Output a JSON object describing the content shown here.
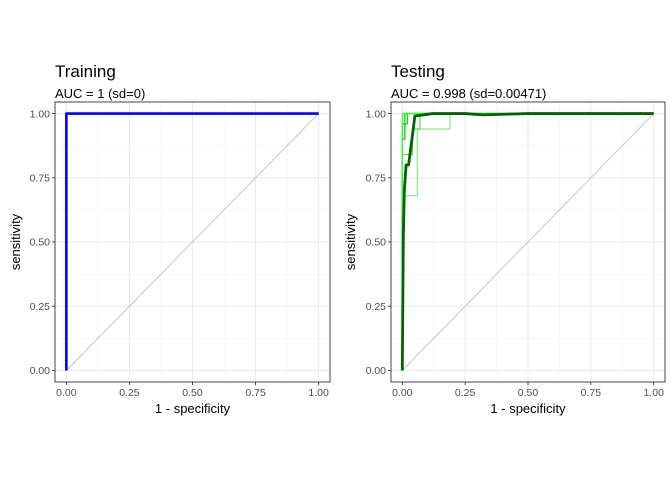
{
  "chart_data": [
    {
      "type": "line",
      "title": "Training",
      "subtitle": "AUC = 1 (sd=0)",
      "xlabel": "1 - specificity",
      "ylabel": "sensitivity",
      "xlim": [
        0,
        1
      ],
      "ylim": [
        0,
        1
      ],
      "xticks": [
        "0.00",
        "0.25",
        "0.50",
        "0.75",
        "1.00"
      ],
      "yticks": [
        "0.00",
        "0.25",
        "0.50",
        "0.75",
        "1.00"
      ],
      "grid": true,
      "diagonal_color": "#cccccc",
      "series": [
        {
          "color": "#0000ff",
          "width": 2.6,
          "opacity": 1,
          "x": [
            0,
            0,
            1
          ],
          "y": [
            0,
            1,
            1
          ]
        }
      ]
    },
    {
      "type": "line",
      "title": "Testing",
      "subtitle": "AUC = 0.998 (sd=0.00471)",
      "xlabel": "1 - specificity",
      "ylabel": "sensitivity",
      "xlim": [
        0,
        1
      ],
      "ylim": [
        0,
        1
      ],
      "xticks": [
        "0.00",
        "0.25",
        "0.50",
        "0.75",
        "1.00"
      ],
      "yticks": [
        "0.00",
        "0.25",
        "0.50",
        "0.75",
        "1.00"
      ],
      "grid": true,
      "diagonal_color": "#cccccc",
      "series": [
        {
          "color": "#88ee88",
          "width": 1.3,
          "opacity": 1,
          "x": [
            0,
            0,
            0.06,
            0.06,
            0.19,
            0.19,
            1
          ],
          "y": [
            0,
            0.68,
            0.68,
            0.94,
            0.94,
            1,
            1
          ]
        },
        {
          "color": "#55dd55",
          "width": 1.3,
          "opacity": 1,
          "x": [
            0,
            0,
            0.04,
            0.04,
            0.07,
            0.07,
            1
          ],
          "y": [
            0,
            0.84,
            0.84,
            0.94,
            0.94,
            1,
            1
          ]
        },
        {
          "color": "#22cc22",
          "width": 1.3,
          "opacity": 1,
          "x": [
            0,
            0,
            0.02,
            0.02,
            1
          ],
          "y": [
            0,
            0.96,
            0.96,
            1,
            1
          ]
        },
        {
          "color": "#00cc00",
          "width": 1.3,
          "opacity": 1,
          "x": [
            0,
            0,
            0.01,
            0.01,
            1
          ],
          "y": [
            0,
            0.9,
            0.9,
            1,
            1
          ]
        },
        {
          "color": "#33ff33",
          "width": 1.3,
          "opacity": 1,
          "x": [
            0,
            0,
            1
          ],
          "y": [
            0,
            1,
            1
          ]
        },
        {
          "color": "#006400",
          "width": 2.8,
          "opacity": 1,
          "x": [
            0,
            0.004,
            0.008,
            0.015,
            0.025,
            0.05,
            0.12,
            0.25,
            0.32,
            0.5,
            1
          ],
          "y": [
            0,
            0.52,
            0.7,
            0.8,
            0.8,
            0.99,
            1.0,
            1.0,
            0.995,
            1.0,
            1.0
          ]
        }
      ]
    }
  ]
}
